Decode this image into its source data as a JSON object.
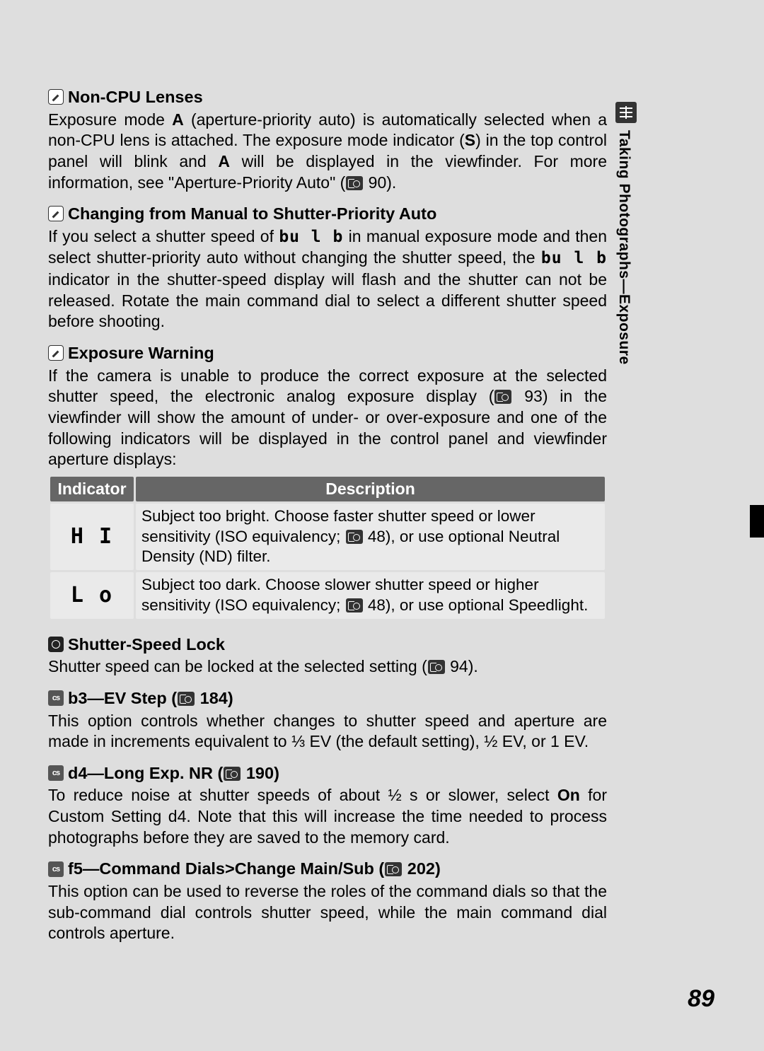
{
  "page": {
    "number": "89",
    "side_tab": "Taking Photographs—Exposure"
  },
  "sections": {
    "nonCpu": {
      "title": "Non-CPU Lenses",
      "body": "Exposure mode <b>A</b> (aperture-priority auto) is automatically selected when a non-CPU lens is attached.  The exposure mode indicator (<b>S</b>) in the top control panel will blink and <b>A</b> will be displayed in the viewfinder.  For more information, see \"Aperture-Priority Auto\" (<span class='ref-icon' data-name='page-ref-icon' data-interactable='false'></span> 90)."
    },
    "changing": {
      "title": "Changing from Manual to Shutter-Priority Auto",
      "body": "If you select a shutter speed of <span class='lcd'>bu l b</span> in manual exposure mode and then select shutter-priority auto without changing the shutter speed, the <span class='lcd'>bu l b</span> indicator in the shutter-speed display will flash and the shutter can not be released.  Rotate the main command dial to select a different shutter speed before shooting."
    },
    "warning": {
      "title": "Exposure Warning",
      "body": "If the camera is unable to produce the correct exposure at the selected shutter speed, the electronic analog exposure display (<span class='ref-icon' data-name='page-ref-icon' data-interactable='false'></span> 93) in the viewfinder will show the amount of under- or over-exposure and one of the following indicators will be displayed in the control panel and viewfinder aperture displays:"
    },
    "table": {
      "headers": {
        "col1": "Indicator",
        "col2": "Description"
      },
      "rows": [
        {
          "indicator": "H I",
          "desc": "Subject too bright.  Choose faster shutter speed or lower sensitivity (ISO equivalency; <span class='ref-icon' data-name='page-ref-icon' data-interactable='false'></span> 48), or use optional Neutral Density (ND) filter."
        },
        {
          "indicator": "L o",
          "desc": "Subject too dark.  Choose slower shutter speed or higher sensitivity (ISO equivalency; <span class='ref-icon' data-name='page-ref-icon' data-interactable='false'></span> 48), or use optional Speedlight."
        }
      ]
    },
    "lock": {
      "title": "Shutter-Speed Lock",
      "body": "Shutter speed can be locked at the selected setting (<span class='ref-icon' data-name='page-ref-icon' data-interactable='false'></span> 94)."
    },
    "b3": {
      "title": "b3—EV Step (<span class='ref-icon' data-name='page-ref-icon' data-interactable='false'></span> 184)",
      "body": "This option controls whether changes to shutter speed and aperture are made in increments equivalent to ⅓ EV (the default setting), ½ EV, or 1 EV."
    },
    "d4": {
      "title": "d4—Long Exp. NR (<span class='ref-icon' data-name='page-ref-icon' data-interactable='false'></span> 190)",
      "body": "To reduce noise at shutter speeds of about ½ s or slower, select <b>On</b> for Custom Setting d4.  Note that this will increase the time needed to process photographs before they are saved to the memory card."
    },
    "f5": {
      "title": "f5—Command Dials>Change Main/Sub (<span class='ref-icon' data-name='page-ref-icon' data-interactable='false'></span> 202)",
      "body": "This option can be used to reverse the roles of the command dials so that the sub-command dial controls shutter speed, while the main command dial controls aperture."
    }
  },
  "colors": {
    "page_bg": "#dedede",
    "table_header_bg": "#666666",
    "table_header_fg": "#ffffff",
    "table_cell_bg": "#eaeaea",
    "icon_bg": "#333333"
  }
}
